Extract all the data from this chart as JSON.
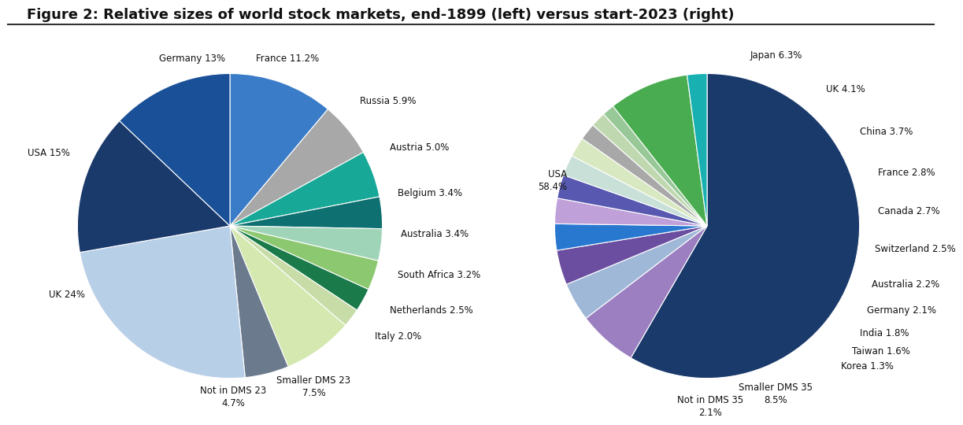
{
  "title": "Figure 2: Relative sizes of world stock markets, end-1899 (left) versus start-2023 (right)",
  "title_fontsize": 13,
  "background_color": "#ffffff",
  "chart1": {
    "labels": [
      "UK",
      "Not in DMS 23",
      "Smaller DMS 23",
      "Italy",
      "Netherlands",
      "South Africa",
      "Australia",
      "Belgium",
      "Austria",
      "Russia",
      "France",
      "Germany",
      "USA"
    ],
    "values": [
      24.0,
      4.7,
      7.5,
      2.0,
      2.5,
      3.2,
      3.4,
      3.4,
      5.0,
      5.9,
      11.2,
      13.0,
      15.0
    ],
    "colors": [
      "#b8cfe8",
      "#6b7b8d",
      "#d4e8b0",
      "#c8dca8",
      "#1a7a4a",
      "#8cc870",
      "#a0d4b8",
      "#0e7070",
      "#18a898",
      "#a8a8a8",
      "#3a7cc8",
      "#1a5098",
      "#1a3a6b"
    ],
    "display": [
      "UK 24%",
      "Not in DMS 23\n4.7%",
      "Smaller DMS 23\n7.5%",
      "Italy 2.0%",
      "Netherlands 2.5%",
      "South Africa 3.2%",
      "Australia 3.4%",
      "Belgium 3.4%",
      "Austria 5.0%",
      "Russia 5.9%",
      "France 11.2%",
      "Germany 13%",
      "USA 15%"
    ],
    "startangle": 270,
    "label_angles": [
      167,
      210,
      231,
      250,
      257,
      264,
      271,
      279,
      288,
      301,
      326,
      351,
      56
    ]
  },
  "chart2": {
    "labels": [
      "USA",
      "Japan",
      "UK",
      "China",
      "France",
      "Canada",
      "Switzerland",
      "Australia",
      "Germany",
      "India",
      "Taiwan",
      "Korea",
      "Smaller DMS 35",
      "Not in DMS 35"
    ],
    "values": [
      58.4,
      6.3,
      4.1,
      3.7,
      2.8,
      2.7,
      2.5,
      2.2,
      2.1,
      1.8,
      1.6,
      1.3,
      8.5,
      2.1
    ],
    "colors": [
      "#1a3a6b",
      "#9b7fc0",
      "#a0b8d8",
      "#6b4ea0",
      "#2878d0",
      "#c0a0d8",
      "#5858b0",
      "#c8e0d8",
      "#d8e8c0",
      "#a8a8a8",
      "#c0d8b0",
      "#98c898",
      "#4aac50",
      "#18b0b0"
    ],
    "display": [
      "USA\n58.4%",
      "Japan 6.3%",
      "UK 4.1%",
      "China 3.7%",
      "France 2.8%",
      "Canada 2.7%",
      "Switzerland 2.5%",
      "Australia 2.2%",
      "Germany 2.1%",
      "India 1.8%",
      "Taiwan 1.6%",
      "Korea 1.3%",
      "Smaller DMS 35\n8.5%",
      "Not in DMS 35\n2.1%"
    ],
    "startangle": 90,
    "label_angles": [
      320,
      28,
      42,
      53,
      62,
      70,
      77,
      84,
      91,
      98,
      104,
      110,
      152,
      183
    ]
  }
}
